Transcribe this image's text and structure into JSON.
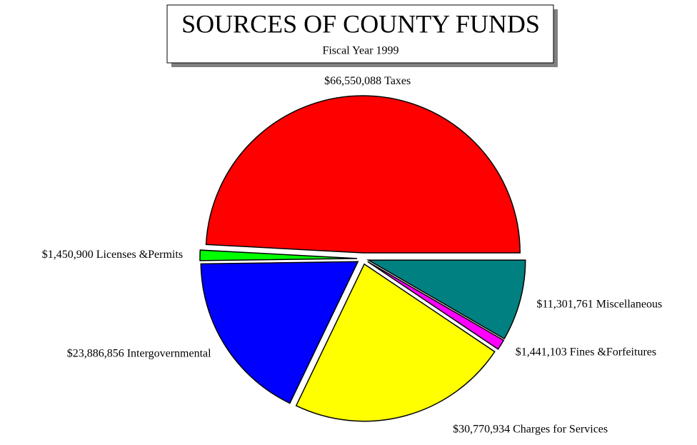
{
  "chart_data": {
    "type": "pie",
    "title": "SOURCES OF COUNTY FUNDS",
    "subtitle": "Fiscal Year 1999",
    "categories": [
      "Taxes",
      "Licenses &Permits",
      "Intergovernmental",
      "Charges for Services",
      "Fines &Forfeitures",
      "Miscellaneous"
    ],
    "values": [
      66550088,
      1450900,
      23886856,
      30770934,
      1441103,
      11301761
    ],
    "value_labels": [
      "$66,550,088",
      "$1,450,900",
      "$23,886,856",
      "$30,770,934",
      "$1,441,103",
      "$11,301,761"
    ],
    "colors": [
      "#ff0000",
      "#00ff00",
      "#0000ff",
      "#ffff00",
      "#ff00ff",
      "#008080"
    ]
  }
}
